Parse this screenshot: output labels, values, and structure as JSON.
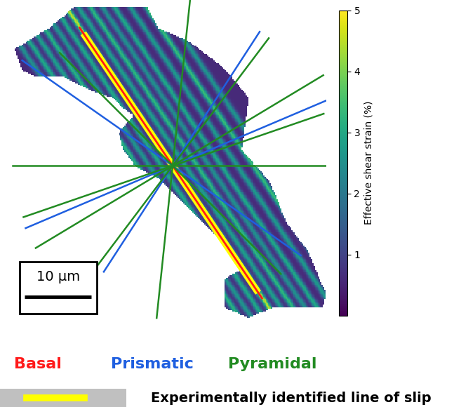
{
  "chart_data": {
    "type": "strain_map",
    "xlim": [
      0,
      48
    ],
    "ylim": [
      48,
      0
    ],
    "tick_labels": false,
    "grain_outline": [
      [
        1.1,
        7.4
      ],
      [
        6.3,
        4.2
      ],
      [
        10.0,
        1.1
      ],
      [
        21.1,
        1.1
      ],
      [
        22.6,
        4.2
      ],
      [
        27.4,
        6.3
      ],
      [
        31.6,
        9.5
      ],
      [
        33.7,
        11.6
      ],
      [
        36.3,
        14.7
      ],
      [
        35.8,
        18.9
      ],
      [
        35.3,
        22.6
      ],
      [
        39.5,
        27.4
      ],
      [
        42.1,
        33.7
      ],
      [
        45.3,
        37.9
      ],
      [
        46.8,
        41.6
      ],
      [
        48.0,
        44.2
      ],
      [
        47.5,
        46.3
      ],
      [
        44.2,
        46.3
      ],
      [
        40.0,
        46.3
      ],
      [
        36.3,
        47.9
      ],
      [
        32.6,
        46.3
      ],
      [
        32.6,
        42.1
      ],
      [
        35.3,
        40.5
      ],
      [
        33.7,
        37.4
      ],
      [
        30.5,
        34.7
      ],
      [
        27.4,
        31.6
      ],
      [
        24.7,
        28.9
      ],
      [
        22.6,
        26.8
      ],
      [
        19.5,
        25.3
      ],
      [
        17.4,
        22.6
      ],
      [
        16.8,
        20.0
      ],
      [
        18.9,
        17.4
      ],
      [
        16.8,
        15.8
      ],
      [
        15.8,
        14.7
      ],
      [
        12.6,
        13.7
      ],
      [
        8.4,
        11.6
      ],
      [
        4.2,
        11.6
      ],
      [
        2.1,
        10.5
      ]
    ],
    "background_strain": 0.6,
    "bands": {
      "angle": 124,
      "offsets": [
        -9,
        -7.5,
        -6,
        -4.5,
        -3,
        -1.5,
        0,
        1.5,
        3,
        4.5,
        6,
        8,
        10,
        12
      ],
      "strain": [
        2.5,
        3.0,
        2.8,
        3.2,
        2.6,
        3.0,
        4.5,
        2.8,
        3.3,
        2.5,
        3.0,
        2.7,
        3.4,
        2.6
      ]
    },
    "trace_center": [
      24.9,
      24.9
    ],
    "colorbar": {
      "range": [
        0,
        5
      ],
      "ticks": [
        1,
        2,
        3,
        4,
        5
      ],
      "label": "Effective shear strain (%)"
    },
    "series": [
      {
        "name": "Basal",
        "color": "#ff1a1a",
        "traces": [
          {
            "angle": 124,
            "extent": [
              -24,
              25
            ]
          }
        ]
      },
      {
        "name": "Prismatic",
        "color": "#1f5fe0",
        "traces": [
          {
            "angle": 57,
            "extent": [
              -19,
              24
            ]
          },
          {
            "angle": 23,
            "extent": [
              -24,
              26.5
            ]
          },
          {
            "angle": 145,
            "extent": [
              -23.5,
              27.6
            ]
          }
        ]
      },
      {
        "name": "Pyramidal",
        "color": "#228b22",
        "traces": [
          {
            "angle": 0,
            "extent": [
              -24,
              24
            ]
          },
          {
            "angle": 84,
            "extent": [
              -23,
              25
            ]
          },
          {
            "angle": 53,
            "extent": [
              -19.5,
              24
            ]
          },
          {
            "angle": 19,
            "extent": [
              -23.7,
              24
            ]
          },
          {
            "angle": 31,
            "extent": [
              -24,
              26.4
            ]
          },
          {
            "angle": 135,
            "extent": [
              -23,
              24
            ]
          }
        ]
      }
    ],
    "identified_slip": {
      "label": "Experimentally identified line of slip",
      "color": "#ffff00",
      "angle": 124,
      "extent": [
        -23,
        24
      ]
    },
    "scale_bar": {
      "length": 10,
      "label": "10 µm"
    }
  }
}
